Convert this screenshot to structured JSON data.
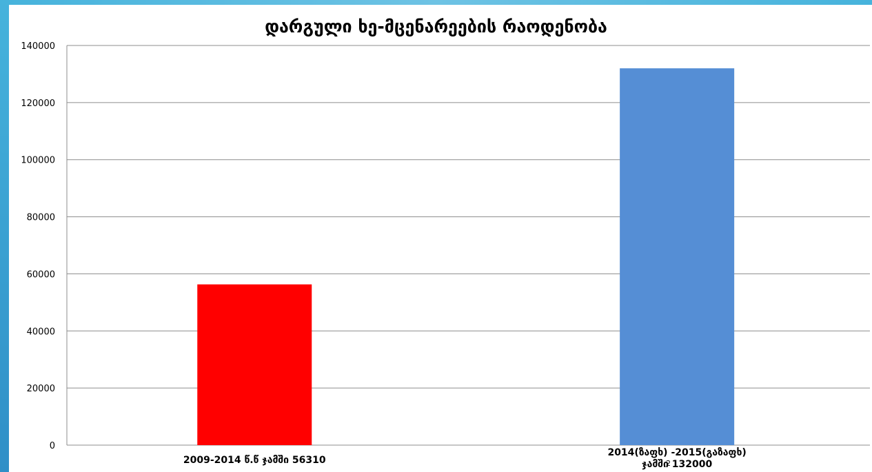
{
  "slide": {
    "number": "2"
  },
  "chart_data": {
    "type": "bar",
    "title": "დარგული ხე-მცენარეების რაოდენობა",
    "categories": [
      [
        "2009-2014 წ.წ ჯამში 56310"
      ],
      [
        "2014(ზაფხ) -2015(გაზაფხ)",
        "ჯამში 132000"
      ]
    ],
    "values": [
      56310,
      132000
    ],
    "colors": [
      "#ff0000",
      "#558ed5"
    ],
    "ylim": [
      0,
      140000
    ],
    "yticks": [
      0,
      20000,
      40000,
      60000,
      80000,
      100000,
      120000,
      140000
    ],
    "grid": true,
    "legend": "none"
  }
}
